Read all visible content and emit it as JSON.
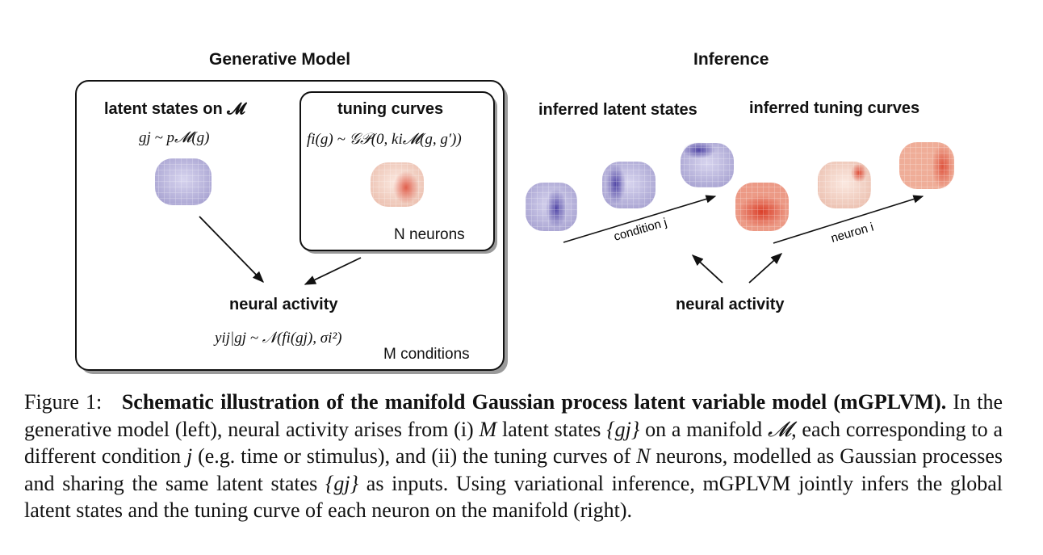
{
  "figure": {
    "generative": {
      "title": "Generative Model",
      "latent_title": "latent states on 𝓜",
      "latent_formula": "gj ~ p𝓜(g)",
      "tuning_title": "tuning curves",
      "tuning_formula": "fi(g) ~ 𝒢𝒫(0, ki𝓜(g, g′))",
      "neurons_label": "N neurons",
      "activity_title": "neural activity",
      "activity_formula": "yij|gj ~ 𝒩(fi(gj), σi²)",
      "conditions_label": "M conditions"
    },
    "inference": {
      "title": "Inference",
      "latent_title": "inferred latent states",
      "tuning_title": "inferred tuning curves",
      "condition_label": "condition j",
      "neuron_label": "neuron i",
      "activity_title": "neural activity"
    },
    "colors": {
      "latent_torus": "#c9c6e6",
      "latent_hot": "#3b2f9a",
      "tuning_torus": "#f6ddd2",
      "tuning_hot": "#d9351f"
    }
  },
  "caption": {
    "label": "Figure 1:",
    "bold_title": "Schematic illustration of the manifold Gaussian process latent variable model (mGPLVM).",
    "part1": "In the generative model (left), neural activity arises from (i)",
    "M": "M",
    "part2": "latent states",
    "gj": "{gj}",
    "part3": "on a manifold",
    "manifold": "𝓜",
    "part4": ", each corresponding to a different condition",
    "j": "j",
    "part5": "(e.g. time or stimulus), and (ii) the tuning curves of",
    "N": "N",
    "part6": "neurons, modelled as Gaussian processes and sharing the same latent states",
    "part7": "as inputs. Using variational inference, mGPLVM jointly infers the global latent states and the tuning curve of each neuron on the manifold (right)."
  }
}
